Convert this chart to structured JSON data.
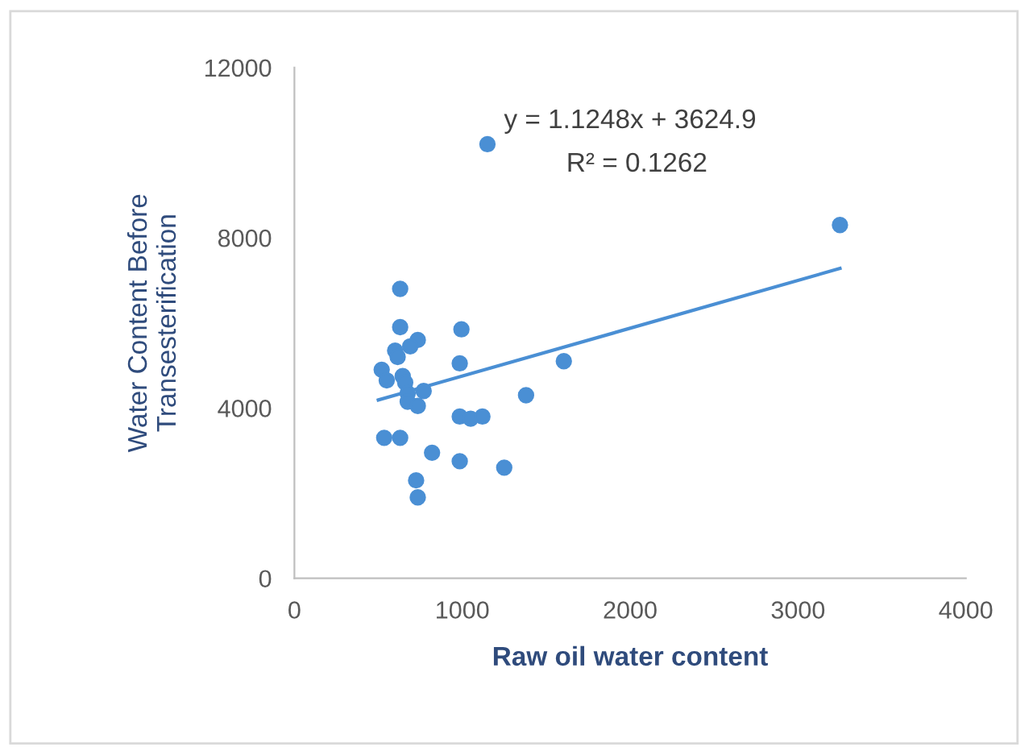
{
  "chart_data": {
    "type": "scatter",
    "xlabel": "Raw oil water content",
    "ylabel": "Water Content Before\nTransesterification",
    "xlim": [
      0,
      4000
    ],
    "xticks": [
      0,
      1000,
      2000,
      3000,
      4000
    ],
    "ylim": [
      0,
      12000
    ],
    "yticks": [
      0,
      4000,
      8000,
      12000
    ],
    "grid": false,
    "marker": "circle",
    "annotations": [
      "y = 1.1248x + 3624.9",
      "R² = 0.1262"
    ],
    "series": [
      {
        "color": "#4a8fd4",
        "x": [
          1150,
          3250,
          630,
          630,
          995,
          735,
          690,
          600,
          615,
          985,
          1605,
          520,
          550,
          645,
          660,
          770,
          675,
          675,
          735,
          1380,
          985,
          1050,
          1120,
          535,
          630,
          820,
          985,
          1250,
          725,
          735
        ],
        "values": [
          10200,
          8300,
          6800,
          5900,
          5850,
          5600,
          5450,
          5350,
          5200,
          5050,
          5100,
          4900,
          4650,
          4750,
          4600,
          4400,
          4350,
          4150,
          4050,
          4300,
          3800,
          3750,
          3800,
          3300,
          3300,
          2950,
          2750,
          2600,
          2300,
          1900
        ]
      },
      {
        "type": "line",
        "marker": "none",
        "color": "#4a8fd4",
        "x": [
          500,
          3250
        ],
        "values": [
          4190,
          7280
        ]
      }
    ]
  }
}
